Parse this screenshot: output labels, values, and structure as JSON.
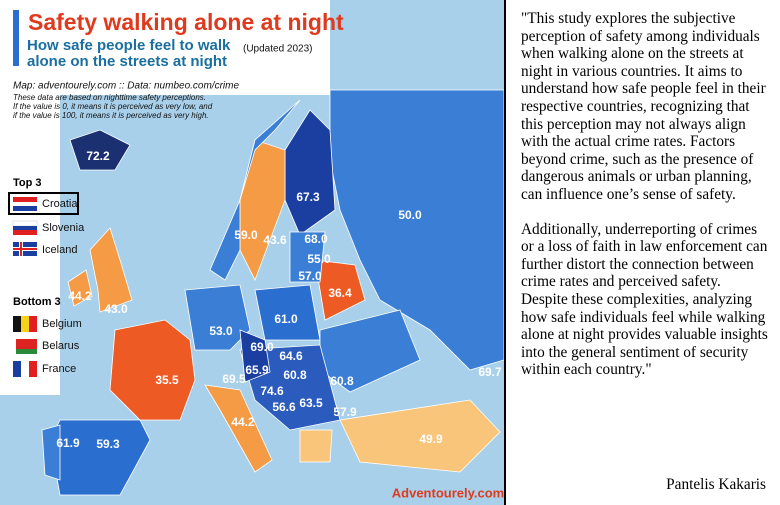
{
  "header": {
    "title": "Safety walking alone at night",
    "subtitle": "How safe people feel to walk alone on the streets at night",
    "updated": "(Updated 2023)"
  },
  "source": "Map: adventourely.com :: Data: numbeo.com/crime",
  "notes": [
    "These data are based on nighttime safety perceptions.",
    "If the value is 0, it means it is perceived as very low, and",
    "if the value is 100, it means it is perceived as very high."
  ],
  "top": {
    "heading": "Top 3",
    "items": [
      "Croatia",
      "Slovenia",
      "Iceland"
    ]
  },
  "bottom": {
    "heading": "Bottom 3",
    "items": [
      "Belgium",
      "Belarus",
      "France"
    ]
  },
  "map_labels": [
    "72.2",
    "67.3",
    "59.0",
    "43.6",
    "50.0",
    "68.0",
    "55.0",
    "57.0",
    "36.4",
    "44.2",
    "43.0",
    "53.0",
    "61.0",
    "35.5",
    "69.0",
    "64.6",
    "65.9",
    "60.8",
    "60.8",
    "69.5",
    "74.6",
    "56.6",
    "63.5",
    "57.9",
    "61.9",
    "59.3",
    "44.2",
    "49.9",
    "69.7"
  ],
  "logo": "Adventourely.com",
  "quote": {
    "paragraphs": [
      "\"This study explores the subjective perception of safety among individuals when walking alone on the streets at night in various countries. It aims to understand how safe people feel in their respective countries, recognizing that this perception may not always align with the actual crime rates. Factors beyond crime, such as the presence of dangerous animals or urban planning, can influence one’s sense of safety.",
      "Additionally, underreporting of crimes or a loss of faith in law enforcement can further distort the connection between crime rates and perceived safety. Despite these complexities, analyzing how safe individuals feel while walking alone at night provides valuable insights into the general sentiment of security within each country.\""
    ],
    "author": "Pantelis Kakaris"
  }
}
